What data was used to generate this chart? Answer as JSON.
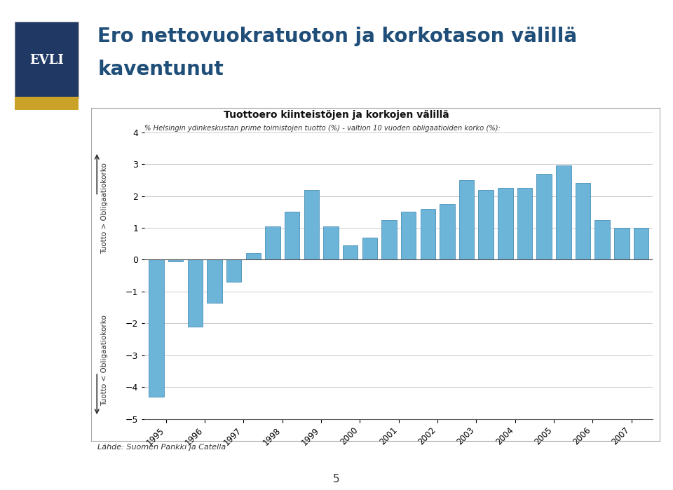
{
  "title_line1": "Ero nettovuokratuoton ja korkotason välillä",
  "title_line2": "kaventunut",
  "chart_title": "Tuottoero kiinteistöjen ja korkojen välillä",
  "subtitle": "% Helsingin ydinkeskustan prime toimistojen tuotto (%) - valtion 10 vuoden obligaatioiden korko (%):",
  "source": "Lähde: Suomen Pankki ja Catella",
  "ylabel_top": "Tuotto > Obligaatiokorko",
  "ylabel_bottom": "Tuotto < Obligaatiokorko",
  "bar_values": [
    -4.3,
    -0.05,
    -2.1,
    -1.35,
    -0.7,
    0.2,
    1.05,
    1.5,
    2.2,
    1.05,
    0.45,
    0.7,
    1.25,
    1.5,
    1.6,
    1.75,
    2.5,
    2.2,
    2.25,
    2.25,
    2.7,
    2.95,
    2.4,
    1.25,
    1.0,
    1.0
  ],
  "year_labels": [
    "1995",
    "1996",
    "1997",
    "1998",
    "1999",
    "2000",
    "2001",
    "2002",
    "2003",
    "2004",
    "2005",
    "2006",
    "2007"
  ],
  "bar_color": "#6CB4D8",
  "bar_edge_color": "#4A90B8",
  "ylim": [
    -5,
    4
  ],
  "yticks": [
    -5,
    -4,
    -3,
    -2,
    -1,
    0,
    1,
    2,
    3,
    4
  ],
  "background_color": "#FFFFFF",
  "grid_color": "#CCCCCC",
  "title_color": "#1F4E79",
  "page_bg": "#FFFFFF",
  "evli_bg": "#1F3864",
  "evli_stripe": "#C9A227"
}
